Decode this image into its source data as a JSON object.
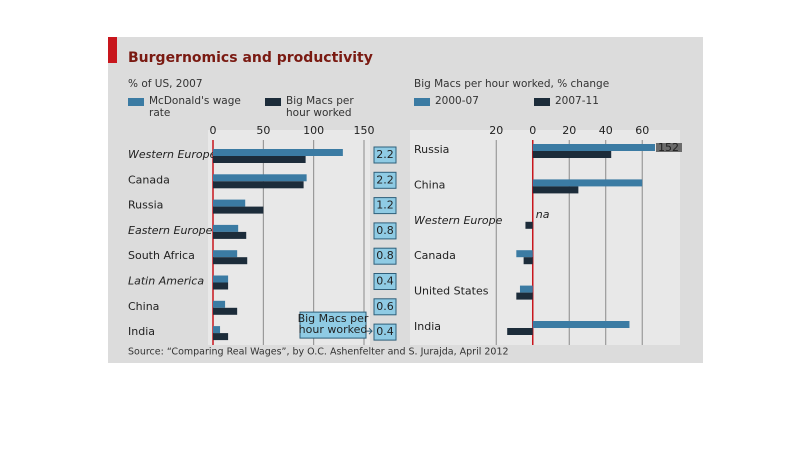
{
  "title": "Burgernomics and productivity",
  "source": "Source: “Comparing Real Wages”, by O.C. Ashenfelter and S. Jurajda, April 2012",
  "chart_data": [
    {
      "type": "bar",
      "orientation": "horizontal",
      "subtitle": "% of US, 2007",
      "categories": [
        "Western Europe",
        "Canada",
        "Russia",
        "Eastern Europe",
        "South Africa",
        "Latin America",
        "China",
        "India"
      ],
      "italic": [
        true,
        false,
        false,
        true,
        false,
        true,
        false,
        false
      ],
      "series": [
        {
          "name": "McDonald's wage rate",
          "color": "#3b7ba3",
          "values": [
            129,
            93,
            32,
            25,
            24,
            15,
            12,
            7
          ]
        },
        {
          "name": "Big Macs per hour worked",
          "color": "#1c2c3a",
          "values": [
            92,
            90,
            50,
            33,
            34,
            15,
            24,
            15
          ]
        }
      ],
      "ratio_values": [
        2.2,
        2.2,
        1.2,
        0.8,
        0.8,
        0.4,
        0.6,
        0.4
      ],
      "annotation": "Big Macs per hour worked",
      "xlim": [
        0,
        150
      ],
      "xticks": [
        0,
        50,
        100,
        150
      ],
      "grid": true
    },
    {
      "type": "bar",
      "orientation": "horizontal",
      "subtitle": "Big Macs per hour worked, % change",
      "categories": [
        "Russia",
        "China",
        "Western Europe",
        "Canada",
        "United States",
        "India"
      ],
      "italic": [
        false,
        false,
        true,
        false,
        false,
        false
      ],
      "series": [
        {
          "name": "2000-07",
          "color": "#3b7ba3",
          "values": [
            152,
            60,
            null,
            -9,
            -7,
            53
          ],
          "value_labels": [
            "152",
            null,
            "na",
            null,
            null,
            null
          ]
        },
        {
          "name": "2007-11",
          "color": "#1c2c3a",
          "values": [
            43,
            25,
            -4,
            -5,
            -9,
            -14
          ]
        }
      ],
      "xlim": [
        -30,
        67
      ],
      "xticks": [
        {
          "value": -20,
          "label": "20"
        },
        0,
        20,
        40,
        60
      ],
      "grid": true
    }
  ]
}
